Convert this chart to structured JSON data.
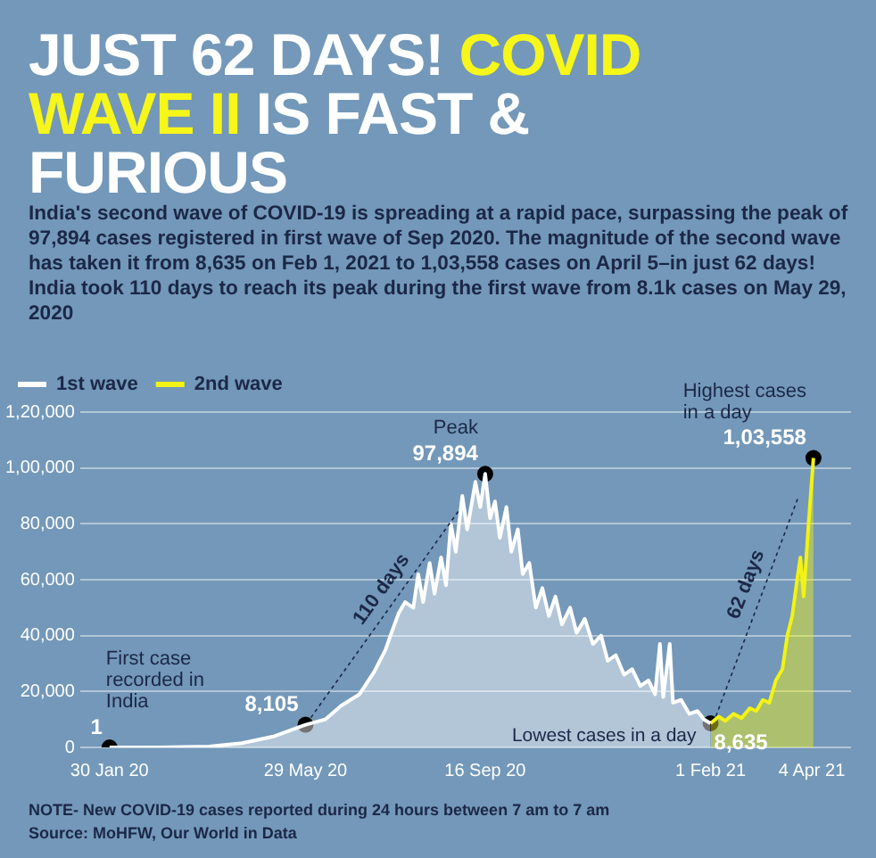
{
  "chart_data": {
    "type": "area",
    "title": "JUST 62 DAYS! COVID WAVE II IS FAST & FURIOUS",
    "subtitle": "India's second wave of COVID-19 is spreading at a rapid pace, surpassing the peak of 97,894 cases registered in first wave of Sep 2020. The magnitude of the second wave has taken it from 8,635 on Feb 1, 2021 to 1,03,558 cases on April 5–in just 62 days! India took 110 days to reach its peak during the first wave from 8.1k cases on May 29, 2020",
    "xlim": [
      "2020-01-12",
      "2021-04-28"
    ],
    "xticks": [
      {
        "value": "2020-01-30",
        "label": "30 Jan 20"
      },
      {
        "value": "2020-05-29",
        "label": "29 May 20"
      },
      {
        "value": "2020-09-16",
        "label": "16 Sep 20"
      },
      {
        "value": "2021-02-01",
        "label": "1 Feb 21"
      },
      {
        "value": "2021-04-04",
        "label": "4 Apr 21"
      }
    ],
    "ylim": [
      0,
      120000
    ],
    "yticks": [
      {
        "value": 0,
        "label": "0"
      },
      {
        "value": 20000,
        "label": "20,000"
      },
      {
        "value": 40000,
        "label": "40,000"
      },
      {
        "value": 60000,
        "label": "60,000"
      },
      {
        "value": 80000,
        "label": "80,000"
      },
      {
        "value": 100000,
        "label": "1,00,000"
      },
      {
        "value": 120000,
        "label": "1,20,000"
      }
    ],
    "grid": "y",
    "legend": "top left",
    "series": [
      {
        "name": "1st wave",
        "type": "area",
        "color": "#ffffff",
        "x": [
          "2020-01-30",
          "2020-03-01",
          "2020-03-31",
          "2020-04-20",
          "2020-05-10",
          "2020-05-29",
          "2020-06-10",
          "2020-06-20",
          "2020-07-01",
          "2020-07-10",
          "2020-07-17",
          "2020-07-20",
          "2020-07-25",
          "2020-07-29",
          "2020-08-03",
          "2020-08-06",
          "2020-08-09",
          "2020-08-13",
          "2020-08-16",
          "2020-08-20",
          "2020-08-23",
          "2020-08-26",
          "2020-08-29",
          "2020-09-02",
          "2020-09-05",
          "2020-09-10",
          "2020-09-13",
          "2020-09-16",
          "2020-09-19",
          "2020-09-22",
          "2020-09-25",
          "2020-09-29",
          "2020-10-02",
          "2020-10-06",
          "2020-10-09",
          "2020-10-13",
          "2020-10-17",
          "2020-10-21",
          "2020-10-25",
          "2020-10-29",
          "2020-11-02",
          "2020-11-07",
          "2020-11-11",
          "2020-11-16",
          "2020-11-21",
          "2020-11-26",
          "2020-11-30",
          "2020-12-05",
          "2020-12-10",
          "2020-12-15",
          "2020-12-20",
          "2020-12-25",
          "2020-12-29",
          "2021-01-01",
          "2021-01-03",
          "2021-01-07",
          "2021-01-09",
          "2021-01-14",
          "2021-01-19",
          "2021-01-24",
          "2021-01-28",
          "2021-02-01"
        ],
        "values": [
          1,
          5,
          300,
          1500,
          4000,
          8105,
          10000,
          15000,
          19000,
          27000,
          35000,
          40000,
          48000,
          52000,
          50000,
          62000,
          52000,
          66000,
          55000,
          68000,
          58000,
          80000,
          70000,
          90000,
          78000,
          95000,
          86000,
          97894,
          82000,
          88000,
          75000,
          86000,
          70000,
          78000,
          62000,
          66000,
          50000,
          57000,
          47000,
          54000,
          44000,
          50000,
          41000,
          46000,
          37000,
          40000,
          31000,
          33000,
          26000,
          28000,
          22000,
          24000,
          19000,
          37000,
          18000,
          37000,
          16000,
          17000,
          12000,
          13000,
          10000,
          8635
        ]
      },
      {
        "name": "2nd wave",
        "type": "area",
        "color": "#f2f215",
        "x": [
          "2021-02-01",
          "2021-02-06",
          "2021-02-10",
          "2021-02-15",
          "2021-02-20",
          "2021-02-25",
          "2021-03-01",
          "2021-03-05",
          "2021-03-09",
          "2021-03-13",
          "2021-03-17",
          "2021-03-20",
          "2021-03-23",
          "2021-03-26",
          "2021-03-28",
          "2021-03-30",
          "2021-04-02",
          "2021-04-05"
        ],
        "values": [
          8635,
          11000,
          9500,
          12000,
          10500,
          14000,
          13000,
          17000,
          16000,
          24000,
          28000,
          40000,
          47000,
          60000,
          68000,
          54000,
          80000,
          103558
        ]
      },
      {
        "type": "scatter",
        "color": "#000000",
        "marker": "circle",
        "x": [
          "2020-01-30",
          "2020-05-29",
          "2020-09-16",
          "2021-02-01",
          "2021-04-05"
        ],
        "values": [
          1,
          8105,
          97894,
          8635,
          103558
        ],
        "value_labels": [
          "1",
          "8,105",
          "97,894",
          "8,635",
          "1,03,558"
        ]
      }
    ],
    "annotations": [
      {
        "text": "First case recorded in India",
        "x": "2020-01-30",
        "y": 1
      },
      {
        "text": "Peak",
        "x": "2020-09-16",
        "y": 97894
      },
      {
        "text": "Lowest cases in a day",
        "x": "2021-02-01",
        "y": 8635
      },
      {
        "text": "Highest cases in a day",
        "x": "2021-04-05",
        "y": 103558
      },
      "110 days",
      "62 days",
      "NOTE- New COVID-19 cases reported during 24 hours between 7 am to 7 am",
      "Source: MoHFW, Our World in Data"
    ]
  }
}
